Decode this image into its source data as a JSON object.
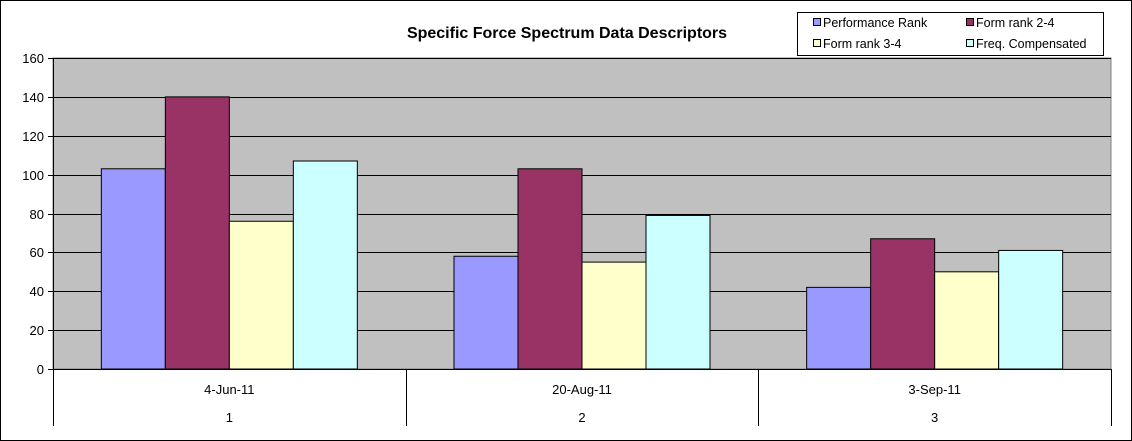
{
  "chart_data": {
    "type": "bar",
    "title": "Specific Force Spectrum Data Descriptors",
    "xlabel": "",
    "ylabel": "",
    "ylim": [
      0,
      160
    ],
    "ytick_step": 20,
    "grid": true,
    "legend_position": "top-right",
    "categories": [
      {
        "date": "4-Jun-11",
        "index": "1"
      },
      {
        "date": "20-Aug-11",
        "index": "2"
      },
      {
        "date": "3-Sep-11",
        "index": "3"
      }
    ],
    "series": [
      {
        "name": "Performance Rank",
        "color": "#9999ff",
        "values": [
          103,
          58,
          42
        ]
      },
      {
        "name": "Form rank 2-4",
        "color": "#993366",
        "values": [
          140,
          103,
          67
        ]
      },
      {
        "name": "Form rank 3-4",
        "color": "#ffffcc",
        "values": [
          76,
          55,
          50
        ]
      },
      {
        "name": "Freq. Compensated",
        "color": "#ccffff",
        "values": [
          107,
          79,
          61
        ]
      }
    ],
    "plot_area_color": "#c0c0c0"
  }
}
